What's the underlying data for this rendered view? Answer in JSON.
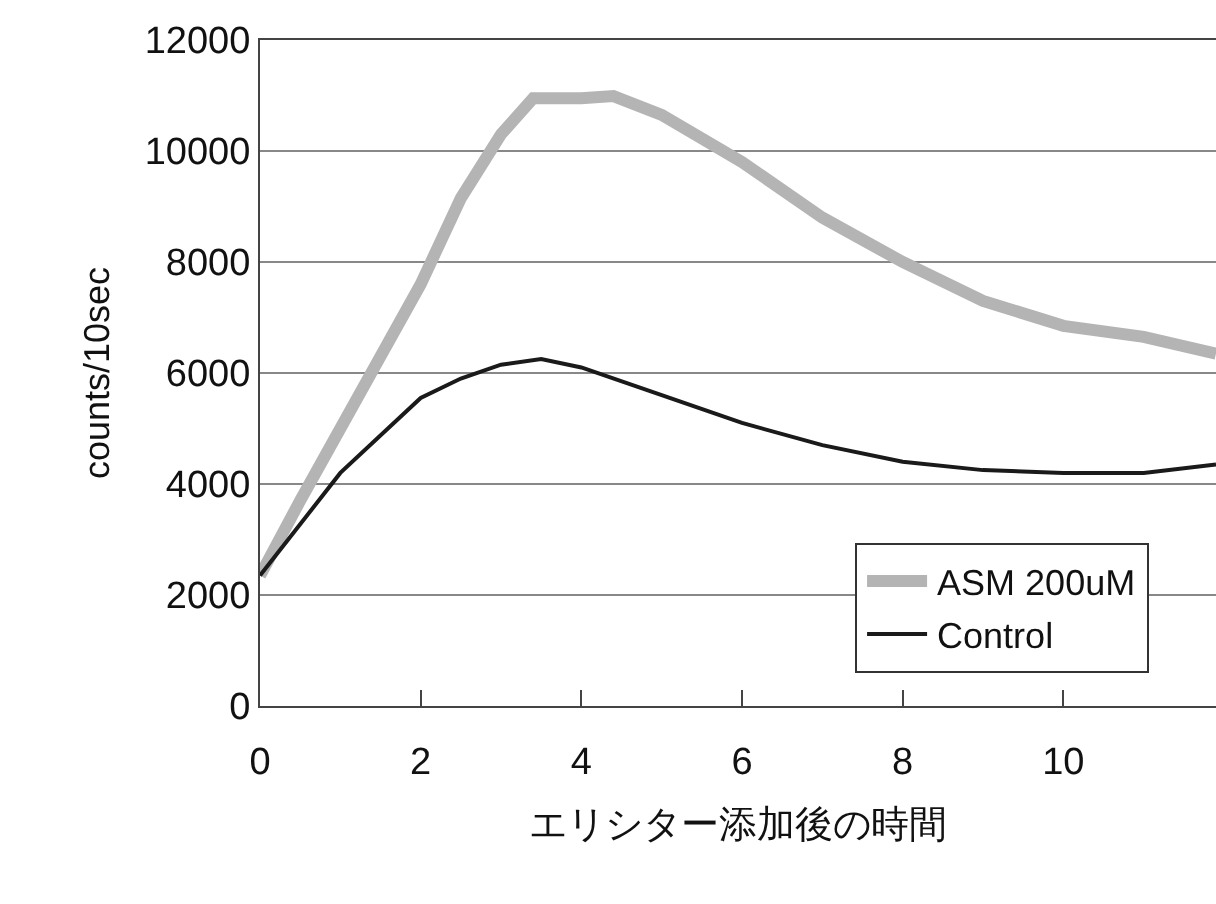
{
  "chart_data": {
    "type": "line",
    "xlabel": "エリシター添加後の時間",
    "ylabel": "counts/10sec",
    "xlim": [
      0,
      11.9
    ],
    "xticks": [
      0,
      2,
      4,
      6,
      8,
      10
    ],
    "ylim": [
      0,
      12000
    ],
    "yticks": [
      0,
      2000,
      4000,
      6000,
      8000,
      10000,
      12000
    ],
    "grid": "y",
    "legend": "bottom right",
    "marker": "none",
    "line_style": "solid",
    "series": [
      {
        "name": "ASM 200uM",
        "color": "#b4b4b4",
        "x": [
          0,
          0.5,
          1,
          1.5,
          2,
          2.5,
          3,
          3.4,
          4,
          4.4,
          5,
          6,
          7,
          8,
          9,
          10,
          11,
          11.9
        ],
        "values": [
          2350,
          3700,
          5000,
          6300,
          7600,
          9150,
          10300,
          10950,
          10950,
          10990,
          10650,
          9800,
          8800,
          8000,
          7300,
          6850,
          6650,
          6350
        ]
      },
      {
        "name": "Control",
        "color": "#1a1a1a",
        "x": [
          0,
          1,
          2,
          2.5,
          3,
          3.5,
          4,
          5,
          6,
          7,
          8,
          9,
          10,
          11,
          11.9
        ],
        "values": [
          2350,
          4200,
          5550,
          5900,
          6150,
          6250,
          6100,
          5600,
          5100,
          4700,
          4400,
          4250,
          4200,
          4200,
          4350
        ]
      }
    ]
  }
}
